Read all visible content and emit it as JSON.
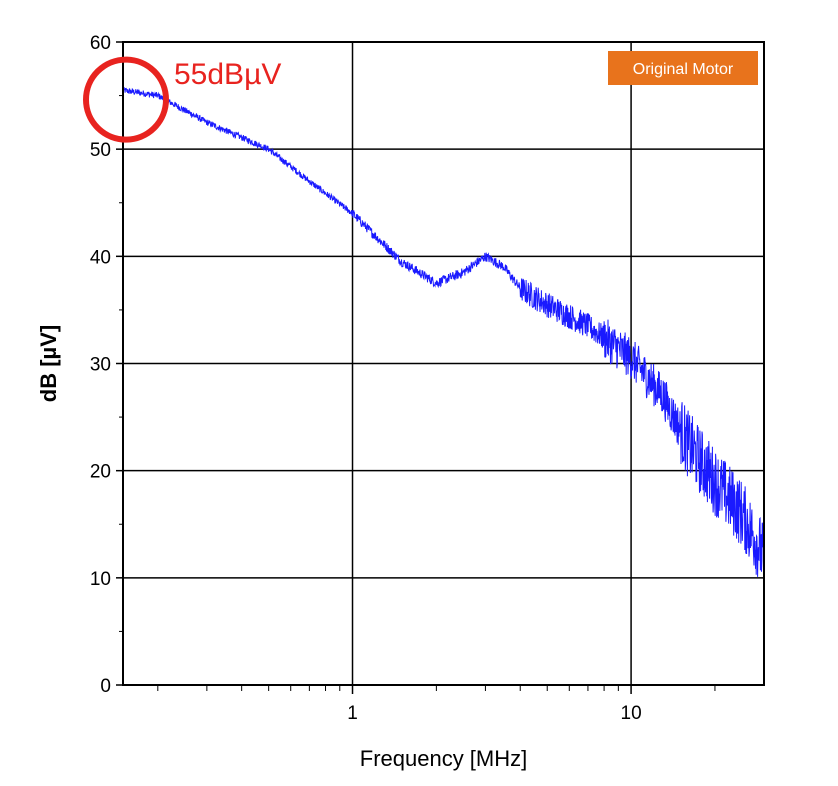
{
  "chart_data": {
    "type": "line",
    "title": "",
    "xlabel": "Frequency [MHz]",
    "ylabel": "dB [µV]",
    "xscale": "log",
    "xlim": [
      0.15,
      30
    ],
    "ylim": [
      0,
      60
    ],
    "xticks": [
      {
        "value": 1,
        "label": "1"
      },
      {
        "value": 10,
        "label": "10"
      }
    ],
    "yticks": [
      {
        "value": 0,
        "label": "0"
      },
      {
        "value": 10,
        "label": "10"
      },
      {
        "value": 20,
        "label": "20"
      },
      {
        "value": 30,
        "label": "30"
      },
      {
        "value": 40,
        "label": "40"
      },
      {
        "value": 50,
        "label": "50"
      },
      {
        "value": 60,
        "label": "60"
      }
    ],
    "grid": true,
    "series": [
      {
        "color": "#1a1aff",
        "x": [
          0.15,
          0.2,
          0.3,
          0.5,
          0.7,
          1.0,
          1.5,
          2.0,
          2.5,
          3.0,
          3.5,
          4.0,
          5.0,
          7.0,
          10.0,
          13.0,
          16.0,
          20.0,
          25.0,
          30.0
        ],
        "y": [
          55.5,
          55.0,
          52.5,
          50.0,
          47.0,
          44.0,
          39.5,
          37.5,
          38.5,
          40.0,
          39.0,
          37.0,
          35.5,
          33.5,
          30.5,
          27.0,
          22.5,
          19.0,
          16.0,
          12.0
        ]
      }
    ],
    "annotations": [
      {
        "text": "55dBµV",
        "x": 0.15,
        "y": 55,
        "color": "#e8231f"
      }
    ],
    "legend": {
      "label": "Original Motor",
      "position": "top-right",
      "color": "#e8731c"
    }
  }
}
